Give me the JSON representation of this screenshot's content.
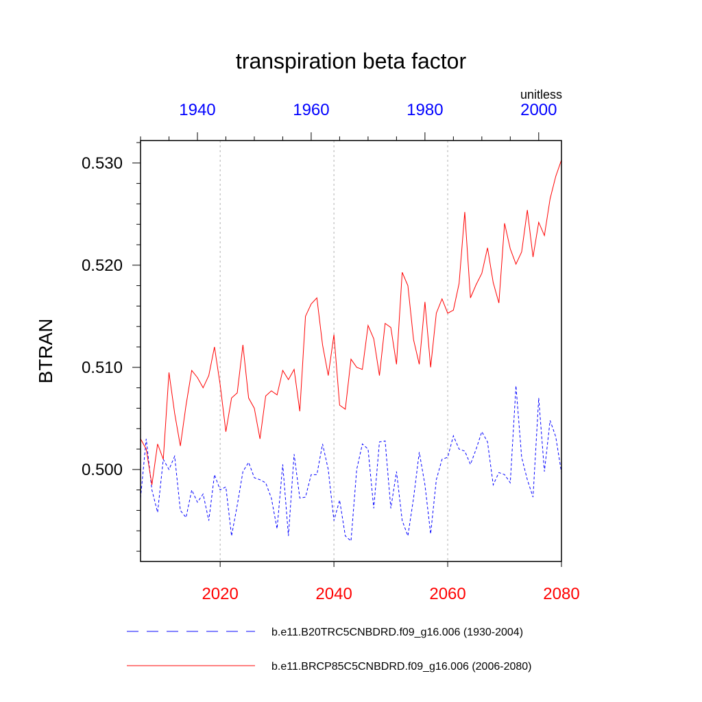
{
  "chart_data": {
    "type": "line",
    "title": "transpiration beta factor",
    "ylabel": "BTRAN",
    "units": "unitless",
    "ylim": [
      0.491,
      0.5322
    ],
    "yticks": [
      0.5,
      0.51,
      0.52,
      0.53
    ],
    "ytick_labels": [
      "0.500",
      "0.510",
      "0.520",
      "0.530"
    ],
    "bottom_axis": {
      "xlim": [
        2006,
        2080
      ],
      "ticks": [
        2020,
        2040,
        2060,
        2080
      ],
      "tick_labels": [
        "2020",
        "2040",
        "2060",
        "2080"
      ],
      "color": "#ff0000"
    },
    "top_axis": {
      "xlim": [
        1930,
        2004
      ],
      "ticks": [
        1940,
        1960,
        1980,
        2000
      ],
      "tick_labels": [
        "1940",
        "1960",
        "1980",
        "2000"
      ],
      "color": "#0000ff"
    },
    "gridlines_x": [
      2020,
      2040,
      2060
    ],
    "series": [
      {
        "name": "b.e11.B20TRC5CNBDRD.f09_g16.006 (1930-2004)",
        "axis": "top",
        "color": "#0000ff",
        "dash": "dashed",
        "x_start": 1930,
        "values": [
          0.4972,
          0.503,
          0.498,
          0.4958,
          0.501,
          0.5,
          0.5013,
          0.496,
          0.4953,
          0.498,
          0.4968,
          0.4976,
          0.495,
          0.4995,
          0.498,
          0.4983,
          0.4935,
          0.4965,
          0.4998,
          0.5007,
          0.4992,
          0.499,
          0.4987,
          0.4972,
          0.4942,
          0.5005,
          0.4935,
          0.5015,
          0.4972,
          0.4973,
          0.4995,
          0.4995,
          0.5025,
          0.5,
          0.495,
          0.497,
          0.4935,
          0.493,
          0.5,
          0.5025,
          0.502,
          0.4962,
          0.5027,
          0.5028,
          0.4962,
          0.4998,
          0.495,
          0.4935,
          0.4972,
          0.5017,
          0.4985,
          0.4937,
          0.499,
          0.501,
          0.5012,
          0.5033,
          0.502,
          0.5018,
          0.5005,
          0.502,
          0.5037,
          0.5027,
          0.4985,
          0.4997,
          0.4995,
          0.4987,
          0.5082,
          0.5012,
          0.499,
          0.4973,
          0.507,
          0.4998,
          0.5048,
          0.5032,
          0.4997
        ]
      },
      {
        "name": "b.e11.BRCP85C5CNBDRD.f09_g16.006 (2006-2080)",
        "axis": "bottom",
        "color": "#ff0000",
        "dash": "solid",
        "x_start": 2006,
        "values": [
          0.503,
          0.502,
          0.4985,
          0.5025,
          0.501,
          0.5095,
          0.5055,
          0.5023,
          0.5063,
          0.5097,
          0.509,
          0.508,
          0.5092,
          0.512,
          0.5083,
          0.5037,
          0.507,
          0.5075,
          0.5122,
          0.507,
          0.506,
          0.503,
          0.5072,
          0.5077,
          0.5073,
          0.5097,
          0.5088,
          0.5098,
          0.5057,
          0.515,
          0.5162,
          0.5168,
          0.5122,
          0.5092,
          0.5132,
          0.5063,
          0.5059,
          0.5108,
          0.51,
          0.5098,
          0.5141,
          0.5128,
          0.5092,
          0.5143,
          0.5139,
          0.5103,
          0.5193,
          0.518,
          0.5127,
          0.5103,
          0.5164,
          0.51,
          0.5153,
          0.5167,
          0.5153,
          0.5156,
          0.5182,
          0.5252,
          0.5168,
          0.5181,
          0.5192,
          0.5217,
          0.5183,
          0.5163,
          0.5241,
          0.5216,
          0.5201,
          0.5213,
          0.5254,
          0.5208,
          0.5242,
          0.5229,
          0.5265,
          0.5287,
          0.5303
        ]
      }
    ]
  },
  "legend": {
    "items": [
      {
        "label": "b.e11.B20TRC5CNBDRD.f09_g16.006 (1930-2004)",
        "color": "#0000ff",
        "dash": "dashed"
      },
      {
        "label": "b.e11.BRCP85C5CNBDRD.f09_g16.006 (2006-2080)",
        "color": "#ff0000",
        "dash": "solid"
      }
    ]
  }
}
